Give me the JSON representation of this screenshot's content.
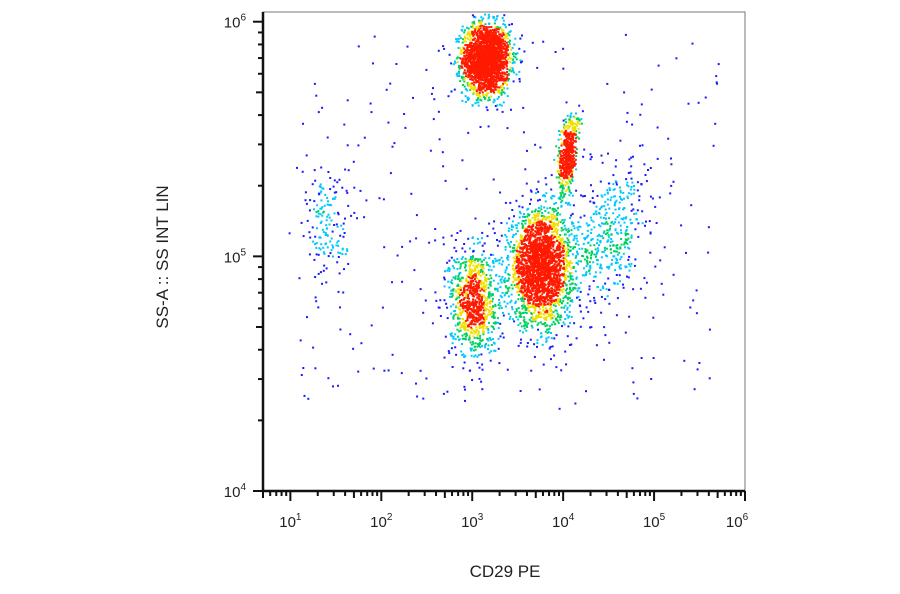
{
  "chart_data": {
    "type": "scatter",
    "subtype": "flow-cytometry density dot plot",
    "title": "",
    "xlabel": "CD29 PE",
    "ylabel": "SS-A :: SS INT LIN",
    "x_scale": "log",
    "y_scale": "log",
    "xlim": [
      5,
      1000000
    ],
    "ylim": [
      10000,
      1100000
    ],
    "x_ticks": [
      {
        "base": "10",
        "exp": "1",
        "value": 10
      },
      {
        "base": "10",
        "exp": "2",
        "value": 100
      },
      {
        "base": "10",
        "exp": "3",
        "value": 1000
      },
      {
        "base": "10",
        "exp": "4",
        "value": 10000
      },
      {
        "base": "10",
        "exp": "5",
        "value": 100000
      },
      {
        "base": "10",
        "exp": "6",
        "value": 1000000
      }
    ],
    "y_ticks": [
      {
        "base": "10",
        "exp": "4",
        "value": 10000
      },
      {
        "base": "10",
        "exp": "5",
        "value": 100000
      },
      {
        "base": "10",
        "exp": "6",
        "value": 1000000
      }
    ],
    "grid": false,
    "legend": "none",
    "colormap": [
      "#1a1aff",
      "#00c8ff",
      "#00d060",
      "#f0e000",
      "#ff1a00"
    ],
    "populations": [
      {
        "center_x": 1400,
        "center_y": 700000,
        "count": 2200,
        "peak_density": "high"
      },
      {
        "center_x": 5500,
        "center_y": 90000,
        "count": 2400,
        "peak_density": "medium-high"
      },
      {
        "center_x": 1000,
        "center_y": 65000,
        "count": 900,
        "peak_density": "medium"
      },
      {
        "center_x": 11000,
        "center_y": 270000,
        "count": 500,
        "peak_density": "medium"
      },
      {
        "center_x": 25,
        "center_y": 140000,
        "count": 160,
        "peak_density": "low"
      },
      {
        "center_x": 30000,
        "center_y": 120000,
        "count": 450,
        "peak_density": "low"
      }
    ]
  }
}
